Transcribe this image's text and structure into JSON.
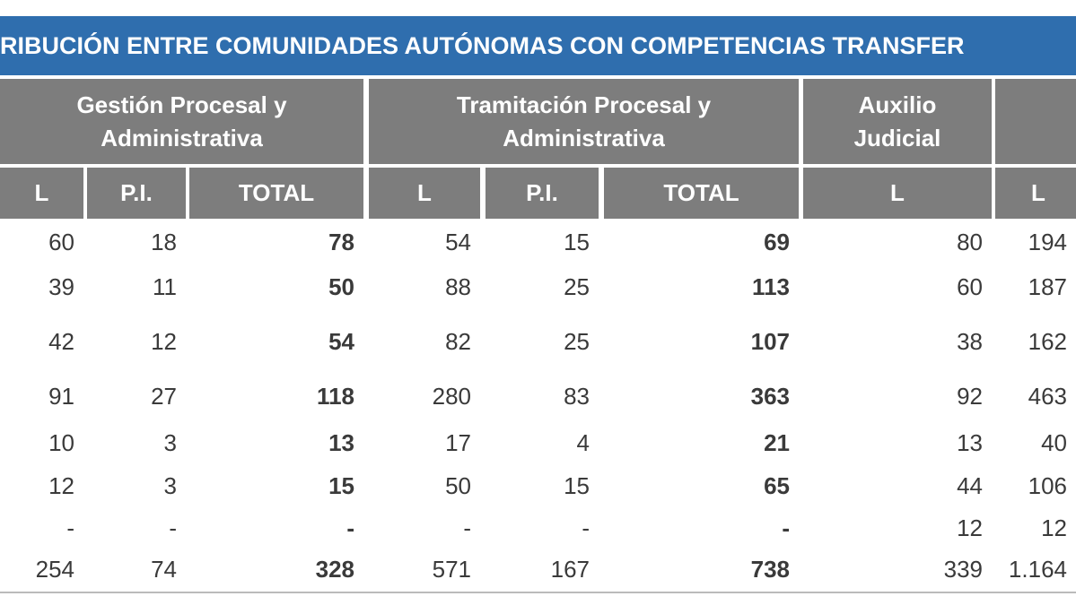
{
  "title": "RIBUCIÓN ENTRE COMUNIDADES AUTÓNOMAS CON COMPETENCIAS TRANSFER",
  "table": {
    "groups": [
      "Gestión Procesal y Administrativa",
      "Tramitación Procesal y Administrativa",
      "Auxilio Judicial"
    ],
    "columns": [
      "L",
      "P.I.",
      "TOTAL",
      "L",
      "P.I.",
      "TOTAL",
      "L",
      "L"
    ],
    "rows": [
      [
        "60",
        "18",
        "78",
        "54",
        "15",
        "69",
        "80",
        "194"
      ],
      [
        "39",
        "11",
        "50",
        "88",
        "25",
        "113",
        "60",
        "187"
      ],
      [
        "42",
        "12",
        "54",
        "82",
        "25",
        "107",
        "38",
        "162"
      ],
      [
        "91",
        "27",
        "118",
        "280",
        "83",
        "363",
        "92",
        "463"
      ],
      [
        "10",
        "3",
        "13",
        "17",
        "4",
        "21",
        "13",
        "40"
      ],
      [
        "12",
        "3",
        "15",
        "50",
        "15",
        "65",
        "44",
        "106"
      ],
      [
        "-",
        "-",
        "-",
        "-",
        "-",
        "-",
        "12",
        "12"
      ],
      [
        "254",
        "74",
        "328",
        "571",
        "167",
        "738",
        "339",
        "1.164"
      ]
    ]
  }
}
